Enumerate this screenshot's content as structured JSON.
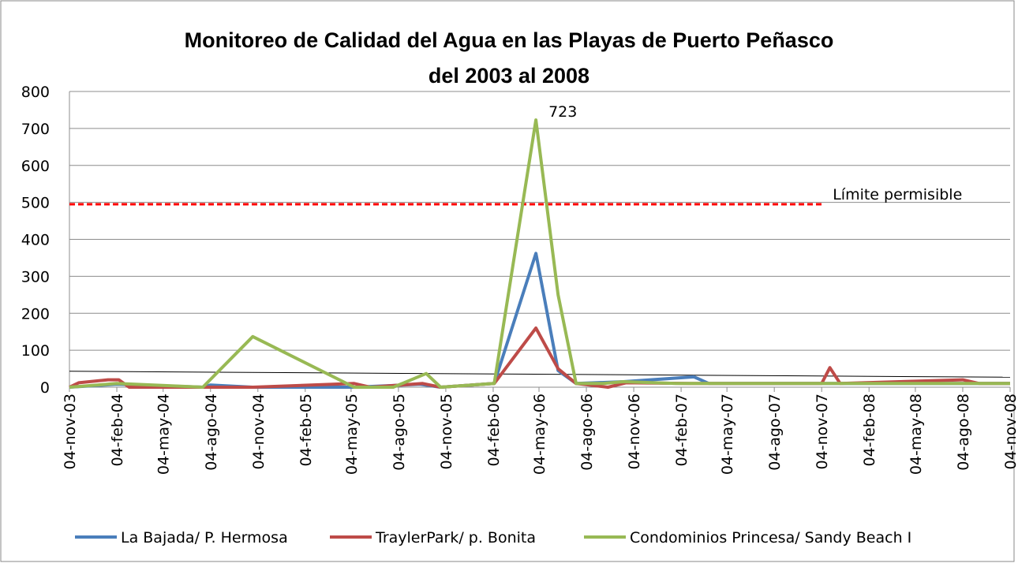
{
  "chart_data": {
    "type": "line",
    "title": [
      "Monitoreo de Calidad del Agua en las Playas de Puerto Peñasco",
      "del 2003 al 2008"
    ],
    "xlim": [
      "2003-11-04",
      "2008-11-04"
    ],
    "xticks": [
      {
        "value": "2003-11-04",
        "label": "04-nov-03"
      },
      {
        "value": "2004-02-04",
        "label": "04-feb-04"
      },
      {
        "value": "2004-05-04",
        "label": "04-may-04"
      },
      {
        "value": "2004-08-04",
        "label": "04-ago-04"
      },
      {
        "value": "2004-11-04",
        "label": "04-nov-04"
      },
      {
        "value": "2005-02-04",
        "label": "04-feb-05"
      },
      {
        "value": "2005-05-04",
        "label": "04-may-05"
      },
      {
        "value": "2005-08-04",
        "label": "04-ago-05"
      },
      {
        "value": "2005-11-04",
        "label": "04-nov-05"
      },
      {
        "value": "2006-02-04",
        "label": "04-feb-06"
      },
      {
        "value": "2006-05-04",
        "label": "04-may-06"
      },
      {
        "value": "2006-08-04",
        "label": "04-ago-06"
      },
      {
        "value": "2006-11-04",
        "label": "04-nov-06"
      },
      {
        "value": "2007-02-04",
        "label": "04-feb-07"
      },
      {
        "value": "2007-05-04",
        "label": "04-may-07"
      },
      {
        "value": "2007-08-04",
        "label": "04-ago-07"
      },
      {
        "value": "2007-11-04",
        "label": "04-nov-07"
      },
      {
        "value": "2008-02-04",
        "label": "04-feb-08"
      },
      {
        "value": "2008-05-04",
        "label": "04-may-08"
      },
      {
        "value": "2008-08-04",
        "label": "04-ago-08"
      },
      {
        "value": "2008-11-04",
        "label": "04-nov-08"
      }
    ],
    "ylim": [
      0,
      800
    ],
    "yticks": [
      0,
      100,
      200,
      300,
      400,
      500,
      600,
      700,
      800
    ],
    "grid": true,
    "series": [
      {
        "name": "La Bajada/ P. Hermosa",
        "color": "#4a7ebb",
        "x": [
          "2003-11-04",
          "2004-02-04",
          "2004-07-20",
          "2004-08-04",
          "2004-10-25",
          "2005-05-10",
          "2005-09-15",
          "2005-10-25",
          "2006-02-06",
          "2006-04-28",
          "2006-06-10",
          "2006-07-15",
          "2006-10-15",
          "2007-03-01",
          "2007-03-30",
          "2008-11-04"
        ],
        "values": [
          0,
          8,
          0,
          6,
          0,
          0,
          8,
          0,
          10,
          362,
          45,
          10,
          15,
          28,
          10,
          10
        ]
      },
      {
        "name": "TraylerPark/ p. Bonita",
        "color": "#be4b48",
        "x": [
          "2003-11-04",
          "2003-11-22",
          "2004-01-18",
          "2004-02-08",
          "2004-02-28",
          "2004-10-25",
          "2005-05-10",
          "2005-06-10",
          "2005-09-20",
          "2005-10-25",
          "2006-02-06",
          "2006-04-28",
          "2006-06-10",
          "2006-07-15",
          "2006-09-15",
          "2006-10-20",
          "2007-02-20",
          "2007-11-04",
          "2007-11-20",
          "2007-12-10",
          "2008-08-04",
          "2008-09-05",
          "2008-11-04"
        ],
        "values": [
          0,
          12,
          20,
          20,
          0,
          0,
          10,
          0,
          10,
          0,
          10,
          160,
          50,
          10,
          0,
          12,
          10,
          10,
          53,
          10,
          20,
          10,
          10
        ]
      },
      {
        "name": "Condominios Princesa/ Sandy Beach  I",
        "color": "#98b954",
        "x": [
          "2003-11-04",
          "2004-02-04",
          "2004-07-20",
          "2004-10-25",
          "2005-05-10",
          "2005-07-25",
          "2005-09-27",
          "2005-10-25",
          "2006-02-06",
          "2006-04-28",
          "2006-06-10",
          "2006-07-15",
          "2006-09-06",
          "2006-10-15",
          "2007-01-25",
          "2008-11-04"
        ],
        "values": [
          0,
          10,
          0,
          137,
          0,
          0,
          37,
          0,
          10,
          723,
          250,
          10,
          10,
          15,
          10,
          10
        ]
      }
    ],
    "trendline": {
      "color": "#000000",
      "x": [
        "2003-11-04",
        "2008-11-04"
      ],
      "values": [
        43,
        27
      ]
    },
    "limit": {
      "label": "Límite permisible",
      "value": 495,
      "color": "#ff0000",
      "x": [
        "2003-11-04",
        "2007-11-04"
      ]
    },
    "annotation": {
      "text": "723",
      "series": 2,
      "index": 9
    }
  }
}
